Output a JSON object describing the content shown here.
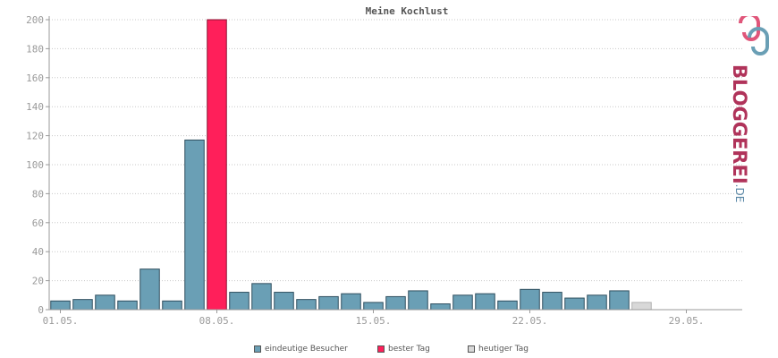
{
  "chart_data": {
    "type": "bar",
    "title": "Meine Kochlust",
    "ylim": [
      0,
      200
    ],
    "yticks": [
      0,
      20,
      40,
      60,
      80,
      100,
      120,
      140,
      160,
      180,
      200
    ],
    "xtick_labels": [
      "01.05.",
      "08.05.",
      "15.05.",
      "22.05.",
      "29.05."
    ],
    "xtick_days": [
      1,
      8,
      15,
      22,
      29
    ],
    "days": [
      1,
      2,
      3,
      4,
      5,
      6,
      7,
      8,
      9,
      10,
      11,
      12,
      13,
      14,
      15,
      16,
      17,
      18,
      19,
      20,
      21,
      22,
      23,
      24,
      25,
      26,
      27,
      28,
      29,
      30,
      31
    ],
    "values": [
      6,
      7,
      10,
      6,
      28,
      6,
      117,
      200,
      12,
      18,
      12,
      7,
      9,
      11,
      5,
      9,
      13,
      4,
      10,
      11,
      6,
      14,
      12,
      8,
      10,
      13,
      5,
      0,
      0,
      0,
      0
    ],
    "best_day": 8,
    "today": 27,
    "grid": true,
    "series": [
      {
        "name": "eindeutige Besucher",
        "color": "#6a9fb5"
      },
      {
        "name": "bester Tag",
        "color": "#ff1f5a"
      },
      {
        "name": "heutiger Tag",
        "color": "#d8d8d8"
      }
    ],
    "legend_position": "bottom"
  },
  "logo": {
    "text": "BLOGGEREI",
    "suffix": ".DE"
  }
}
